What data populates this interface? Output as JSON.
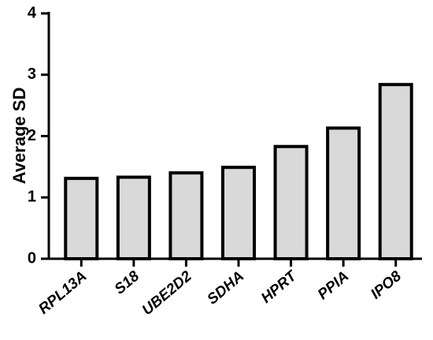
{
  "chart_data": {
    "type": "bar",
    "y_label": "Average SD",
    "categories": [
      "RPL13A",
      "S18",
      "UBE2D2",
      "SDHA",
      "HPRT",
      "PPIA",
      "IPO8"
    ],
    "values": [
      1.31,
      1.33,
      1.4,
      1.49,
      1.83,
      2.13,
      2.84
    ],
    "color": "#d9d9d9",
    "ylim": [
      0,
      4
    ],
    "yticks": [
      0,
      1,
      2,
      3,
      4
    ],
    "grid": false
  }
}
